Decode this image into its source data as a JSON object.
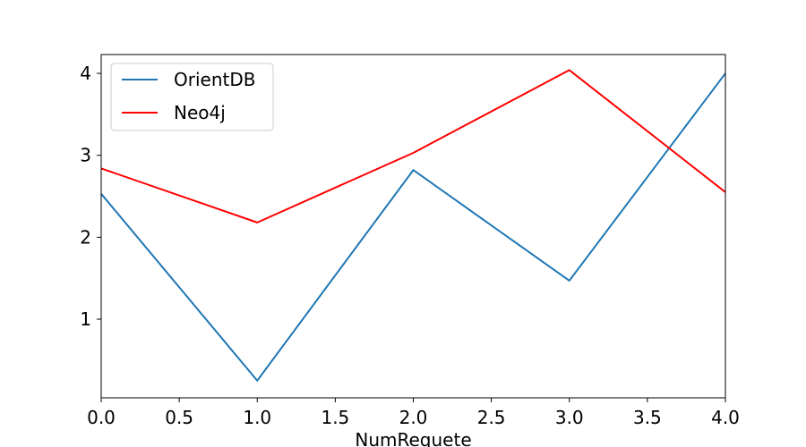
{
  "chart_data": {
    "type": "line",
    "title": "",
    "xlabel": "NumRequete",
    "ylabel": "",
    "x": [
      0,
      1,
      2,
      3,
      4
    ],
    "xlim": [
      0,
      4
    ],
    "ylim": [
      0.04,
      4.23
    ],
    "xticks": [
      0.0,
      0.5,
      1.0,
      1.5,
      2.0,
      2.5,
      3.0,
      3.5,
      4.0
    ],
    "xtick_labels": [
      "0.0",
      "0.5",
      "1.0",
      "1.5",
      "2.0",
      "2.5",
      "3.0",
      "3.5",
      "4.0"
    ],
    "yticks": [
      1,
      2,
      3,
      4
    ],
    "ytick_labels": [
      "1",
      "2",
      "3",
      "4"
    ],
    "grid": false,
    "legend_position": "top-left",
    "series": [
      {
        "name": "OrientDB",
        "color": "#1f77b4",
        "values": [
          2.53,
          0.25,
          2.82,
          1.47,
          4.0
        ]
      },
      {
        "name": "Neo4j",
        "color": "#ff0000",
        "values": [
          2.84,
          2.18,
          3.03,
          4.04,
          2.55
        ]
      }
    ]
  }
}
